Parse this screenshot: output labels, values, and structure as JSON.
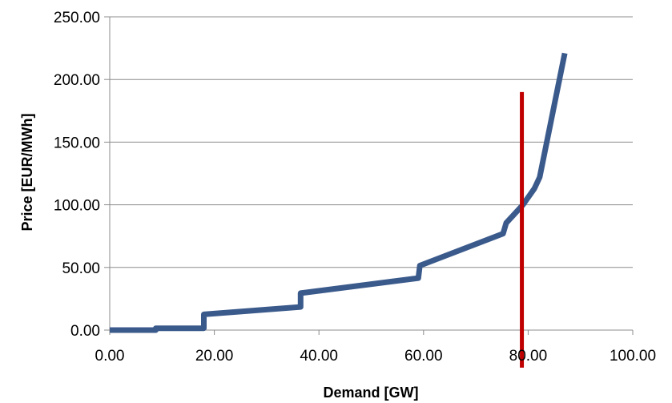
{
  "chart_data": {
    "type": "line",
    "xlabel": "Demand [GW]",
    "ylabel": "Price [EUR/MWh]",
    "xlim": [
      0,
      100
    ],
    "ylim": [
      0,
      250
    ],
    "xticks": [
      "0.00",
      "20.00",
      "40.00",
      "60.00",
      "80.00",
      "100.00"
    ],
    "yticks": [
      "0.00",
      "50.00",
      "100.00",
      "150.00",
      "200.00",
      "250.00"
    ],
    "grid": "horizontal",
    "legend": "none",
    "series": [
      {
        "color": "#3b5a8c",
        "points": [
          [
            0.0,
            0.0
          ],
          [
            8.8,
            0.0
          ],
          [
            8.8,
            1.5
          ],
          [
            18.0,
            1.5
          ],
          [
            18.0,
            12.5
          ],
          [
            36.5,
            18.5
          ],
          [
            36.5,
            29.5
          ],
          [
            59.0,
            41.5
          ],
          [
            59.3,
            51.5
          ],
          [
            75.2,
            77.0
          ],
          [
            75.8,
            85.5
          ],
          [
            79.0,
            100.0
          ],
          [
            81.2,
            113.0
          ],
          [
            82.2,
            122.0
          ],
          [
            87.0,
            221.0
          ]
        ]
      }
    ],
    "reference_line": {
      "orientation": "vertical",
      "x": 78.8,
      "y_range": [
        -30,
        190
      ],
      "color": "#c00000"
    }
  }
}
